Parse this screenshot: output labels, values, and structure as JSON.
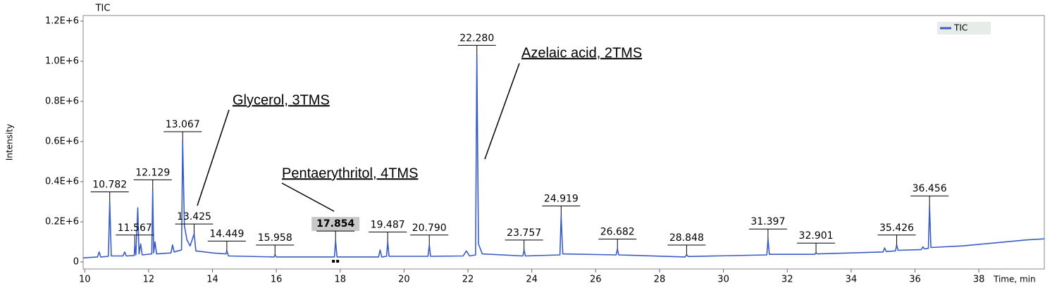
{
  "chart_data": {
    "type": "line",
    "title": "TIC",
    "ylabel": "Intensity",
    "xlabel": "Time, min",
    "xlim": [
      9.95,
      40.05
    ],
    "xticks": [
      10,
      12,
      14,
      16,
      18,
      20,
      22,
      24,
      26,
      28,
      30,
      32,
      34,
      36,
      38
    ],
    "ylim": [
      -35000,
      1228000
    ],
    "yticks": [
      0,
      {
        "value": 200000,
        "label": "0.2E+6"
      },
      {
        "value": 400000,
        "label": "0.4E+6"
      },
      {
        "value": 600000,
        "label": "0.6E+6"
      },
      {
        "value": 800000,
        "label": "0.8E+6"
      },
      {
        "value": 1000000,
        "label": "1.0E+6"
      },
      {
        "value": 1200000,
        "label": "1.2E+6"
      }
    ],
    "legend": "upper right",
    "series": [
      {
        "name": "TIC",
        "color": "#3a5cc4",
        "x": [
          9.95,
          10.4,
          10.45,
          10.5,
          10.74,
          10.782,
          10.83,
          11.2,
          11.25,
          11.3,
          11.55,
          11.567,
          11.6,
          11.66,
          11.7,
          11.75,
          11.8,
          12.1,
          12.129,
          12.16,
          12.2,
          12.25,
          12.7,
          12.75,
          12.8,
          13.03,
          13.067,
          13.12,
          13.2,
          13.3,
          13.425,
          13.48,
          14.0,
          14.42,
          14.449,
          14.5,
          15.93,
          15.958,
          16.0,
          17.82,
          17.854,
          17.9,
          19.2,
          19.25,
          19.3,
          19.45,
          19.487,
          19.53,
          20.75,
          20.79,
          20.83,
          21.85,
          21.95,
          22.05,
          22.24,
          22.28,
          22.33,
          22.45,
          23.72,
          23.757,
          23.8,
          24.88,
          24.919,
          24.97,
          26.64,
          26.682,
          26.72,
          28.8,
          28.848,
          28.9,
          31.36,
          31.397,
          31.44,
          32.86,
          32.901,
          32.95,
          34.0,
          35.0,
          35.05,
          35.1,
          35.39,
          35.426,
          35.47,
          36.2,
          36.25,
          36.3,
          36.42,
          36.456,
          36.5,
          37.5,
          38.5,
          39.5,
          40.05
        ],
        "values": [
          20000,
          25000,
          50000,
          25000,
          28000,
          300000,
          30000,
          30000,
          50000,
          30000,
          32000,
          85000,
          35000,
          270000,
          40000,
          90000,
          35000,
          40000,
          360000,
          45000,
          100000,
          40000,
          45000,
          85000,
          50000,
          60000,
          600000,
          180000,
          110000,
          80000,
          140000,
          55000,
          45000,
          40000,
          55000,
          30000,
          25000,
          35000,
          25000,
          25000,
          105000,
          25000,
          25000,
          60000,
          25000,
          28000,
          100000,
          28000,
          28000,
          85000,
          28000,
          30000,
          55000,
          30000,
          35000,
          1030000,
          90000,
          40000,
          30000,
          60000,
          30000,
          35000,
          230000,
          40000,
          35000,
          65000,
          35000,
          25000,
          35000,
          27000,
          35000,
          115000,
          38000,
          38000,
          45000,
          40000,
          45000,
          50000,
          70000,
          52000,
          55000,
          85000,
          58000,
          62000,
          75000,
          65000,
          68000,
          280000,
          72000,
          80000,
          95000,
          110000,
          115000
        ]
      }
    ],
    "peak_labels": {
      "x": [
        10.782,
        11.567,
        12.129,
        13.067,
        13.425,
        14.449,
        15.958,
        17.854,
        19.487,
        20.79,
        22.28,
        23.757,
        24.919,
        26.682,
        28.848,
        31.397,
        32.901,
        35.426,
        36.456
      ],
      "labels": [
        "10.782",
        "11.567",
        "12.129",
        "13.067",
        "13.425",
        "14.449",
        "15.958",
        "17.854",
        "19.487",
        "20.790",
        "22.280",
        "23.757",
        "24.919",
        "26.682",
        "28.848",
        "31.397",
        "32.901",
        "35.426",
        "36.456"
      ],
      "values": [
        300000,
        85000,
        360000,
        600000,
        140000,
        55000,
        35000,
        105000,
        100000,
        85000,
        1030000,
        60000,
        230000,
        65000,
        35000,
        115000,
        45000,
        85000,
        280000
      ]
    },
    "annotations": [
      "Glycerol, 3TMS",
      "Pentaerythritol, 4TMS",
      "Azelaic acid, 2TMS"
    ]
  }
}
